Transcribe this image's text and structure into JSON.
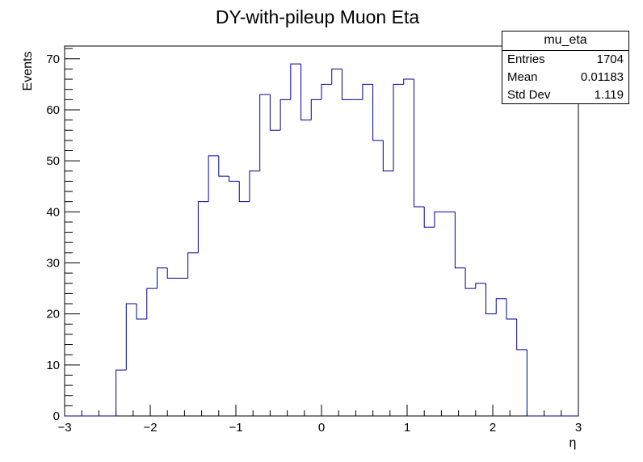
{
  "chart_data": {
    "type": "histogram",
    "title": "DY-with-pileup Muon Eta",
    "xlabel": "η",
    "ylabel": "Events",
    "xlim": [
      -3,
      3
    ],
    "ylim": [
      0,
      72.5
    ],
    "x_ticks": [
      -3,
      -2,
      -1,
      0,
      1,
      2,
      3
    ],
    "x_tick_labels": [
      "−3",
      "−2",
      "−1",
      "0",
      "1",
      "2",
      "3"
    ],
    "y_ticks": [
      0,
      10,
      20,
      30,
      40,
      50,
      60,
      70
    ],
    "y_tick_labels": [
      "0",
      "10",
      "20",
      "30",
      "40",
      "50",
      "60",
      "70"
    ],
    "bin_width": 0.12,
    "bin_low": -3,
    "values": [
      0,
      0,
      0,
      0,
      0,
      9,
      22,
      19,
      25,
      29,
      27,
      27,
      32,
      42,
      51,
      47,
      46,
      42,
      48,
      63,
      56,
      62,
      69,
      58,
      62,
      65,
      68,
      62,
      62,
      65,
      54,
      48,
      65,
      66,
      41,
      37,
      40,
      40,
      29,
      25,
      26,
      20,
      23,
      19,
      13,
      0,
      0,
      0,
      0,
      0
    ],
    "line_color": "#000099",
    "grid": false
  },
  "stats": {
    "name": "mu_eta",
    "rows": [
      {
        "label": "Entries",
        "value": "1704"
      },
      {
        "label": "Mean",
        "value": "0.01183"
      },
      {
        "label": "Std Dev",
        "value": "1.119"
      }
    ]
  }
}
